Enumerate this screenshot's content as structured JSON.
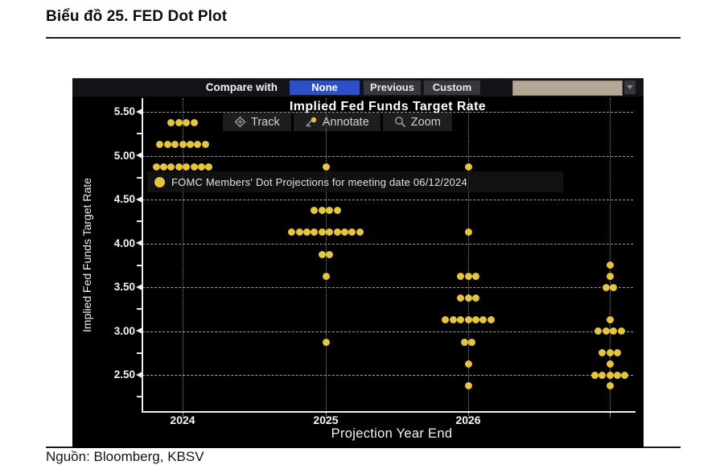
{
  "page": {
    "title": "Biểu đồ 25.  FED Dot Plot",
    "caption": "Nguồn: Bloomberg, KBSV"
  },
  "chart": {
    "compare_bar": {
      "label": "Compare with",
      "options": [
        {
          "label": "None",
          "selected": true
        },
        {
          "label": "Previous",
          "selected": false
        },
        {
          "label": "Custom",
          "selected": false
        }
      ],
      "dropdown_value": ""
    },
    "toolbar": [
      {
        "icon": "track-crosshair-icon",
        "label": "Track"
      },
      {
        "icon": "annotate-pencil-icon",
        "label": "Annotate"
      },
      {
        "icon": "zoom-magnifier-icon",
        "label": "Zoom"
      }
    ],
    "legend": "FOMC Members' Dot Projections for meeting date 06/12/2024",
    "colors": {
      "dot_yellow": "#e5c53e",
      "selected_button_blue": "#2d50c8",
      "dropdown_beige": "#b3a895",
      "background": "#000000",
      "axis_white": "#eeeeee"
    }
  },
  "chart_data": {
    "type": "scatter",
    "title": "Implied Fed Funds Target Rate",
    "xlabel": "Projection Year End",
    "ylabel": "Implied Fed Funds Target Rate",
    "ylim": [
      2.2,
      5.7
    ],
    "yticks": [
      5.5,
      5.0,
      4.5,
      4.0,
      3.5,
      3.0,
      2.5
    ],
    "grid": true,
    "legend_position": "upper-left",
    "meeting_date": "06/12/2024",
    "columns": [
      {
        "year": "2024",
        "dots": [
          {
            "rate": 5.375,
            "count": 4
          },
          {
            "rate": 5.125,
            "count": 7
          },
          {
            "rate": 4.875,
            "count": 8
          }
        ]
      },
      {
        "year": "2025",
        "dots": [
          {
            "rate": 4.875,
            "count": 1
          },
          {
            "rate": 4.375,
            "count": 4
          },
          {
            "rate": 4.125,
            "count": 10
          },
          {
            "rate": 3.875,
            "count": 2
          },
          {
            "rate": 3.625,
            "count": 1
          },
          {
            "rate": 2.875,
            "count": 1
          }
        ]
      },
      {
        "year": "2026",
        "dots": [
          {
            "rate": 4.875,
            "count": 1
          },
          {
            "rate": 4.125,
            "count": 1
          },
          {
            "rate": 3.625,
            "count": 3
          },
          {
            "rate": 3.375,
            "count": 3
          },
          {
            "rate": 3.125,
            "count": 7
          },
          {
            "rate": 2.875,
            "count": 2
          },
          {
            "rate": 2.625,
            "count": 1
          },
          {
            "rate": 2.375,
            "count": 1
          }
        ]
      },
      {
        "year": "",
        "dots": [
          {
            "rate": 3.75,
            "count": 1
          },
          {
            "rate": 3.625,
            "count": 1
          },
          {
            "rate": 3.5,
            "count": 2
          },
          {
            "rate": 3.125,
            "count": 1
          },
          {
            "rate": 3.0,
            "count": 4
          },
          {
            "rate": 2.75,
            "count": 3
          },
          {
            "rate": 2.625,
            "count": 1
          },
          {
            "rate": 2.5,
            "count": 5
          },
          {
            "rate": 2.375,
            "count": 1
          }
        ]
      }
    ]
  }
}
